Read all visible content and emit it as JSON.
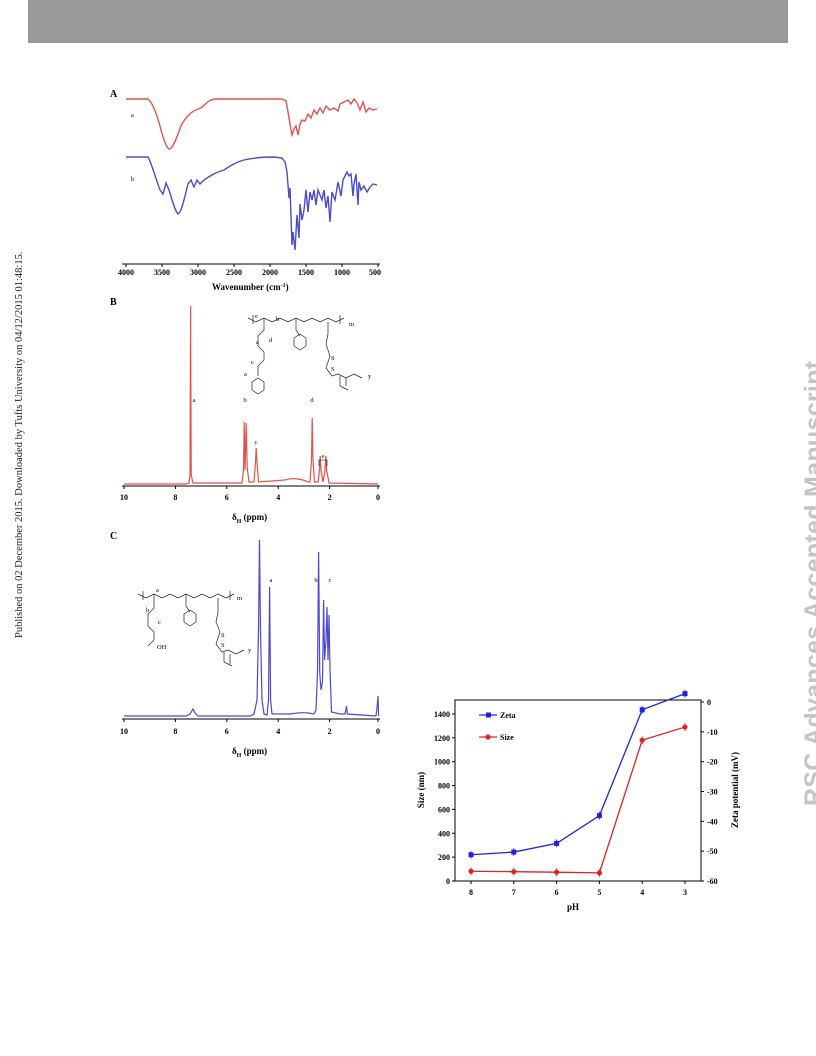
{
  "header": {
    "bar_color": "#999999"
  },
  "sidenote": "Published on 02 December 2015. Downloaded by Tufts University on 04/12/2015 01:48:15.",
  "watermark": "RSC Advances Accepted Manuscript",
  "panel_a": {
    "label": "A",
    "curve_a_label": "a",
    "curve_b_label": "b",
    "xlabel": "Wavenumber (cm",
    "xlabel_sup": "-1",
    "xlabel_close": ")",
    "ticks": [
      "4000",
      "3500",
      "3000",
      "2500",
      "2000",
      "1500",
      "1000",
      "500"
    ]
  },
  "panel_b": {
    "label": "B",
    "peaks": [
      "a",
      "b",
      "c",
      "d",
      "e"
    ],
    "xlabel": "δ",
    "xlabel_sub": "H",
    "xlabel_unit": " (ppm)",
    "ticks": [
      "10",
      "8",
      "6",
      "4",
      "2",
      "0"
    ]
  },
  "panel_c": {
    "label": "C",
    "peaks": [
      "a",
      "b",
      "c"
    ],
    "struct_oh": "OH",
    "xlabel": "δ",
    "xlabel_sub": "H",
    "xlabel_unit": " (ppm)",
    "ticks": [
      "10",
      "8",
      "6",
      "4",
      "2",
      "0"
    ]
  },
  "chart_data": {
    "type": "line",
    "xlabel": "pH",
    "ylabel": "Size (nm)",
    "y2label": "Zeta potential (mV)",
    "categories": [
      "8",
      "7",
      "6",
      "5",
      "4",
      "3"
    ],
    "ylim": [
      0,
      1500
    ],
    "y_ticks": [
      "0",
      "200",
      "400",
      "600",
      "800",
      "1000",
      "1200",
      "1400"
    ],
    "y2lim": [
      -60,
      0
    ],
    "y2_ticks": [
      "0",
      "-10",
      "-20",
      "-30",
      "-40",
      "-50",
      "-60"
    ],
    "legend_position": "top-left",
    "series": [
      {
        "name": "Zeta",
        "axis": "right",
        "color": "#2222dd",
        "marker": "square",
        "values": [
          -51.2,
          -50.3,
          -47.4,
          -38.1,
          -2.6,
          2.8
        ]
      },
      {
        "name": "Size",
        "axis": "left",
        "color": "#dd2222",
        "marker": "circle",
        "values": [
          82,
          78,
          74,
          68,
          1180,
          1290
        ]
      }
    ]
  }
}
